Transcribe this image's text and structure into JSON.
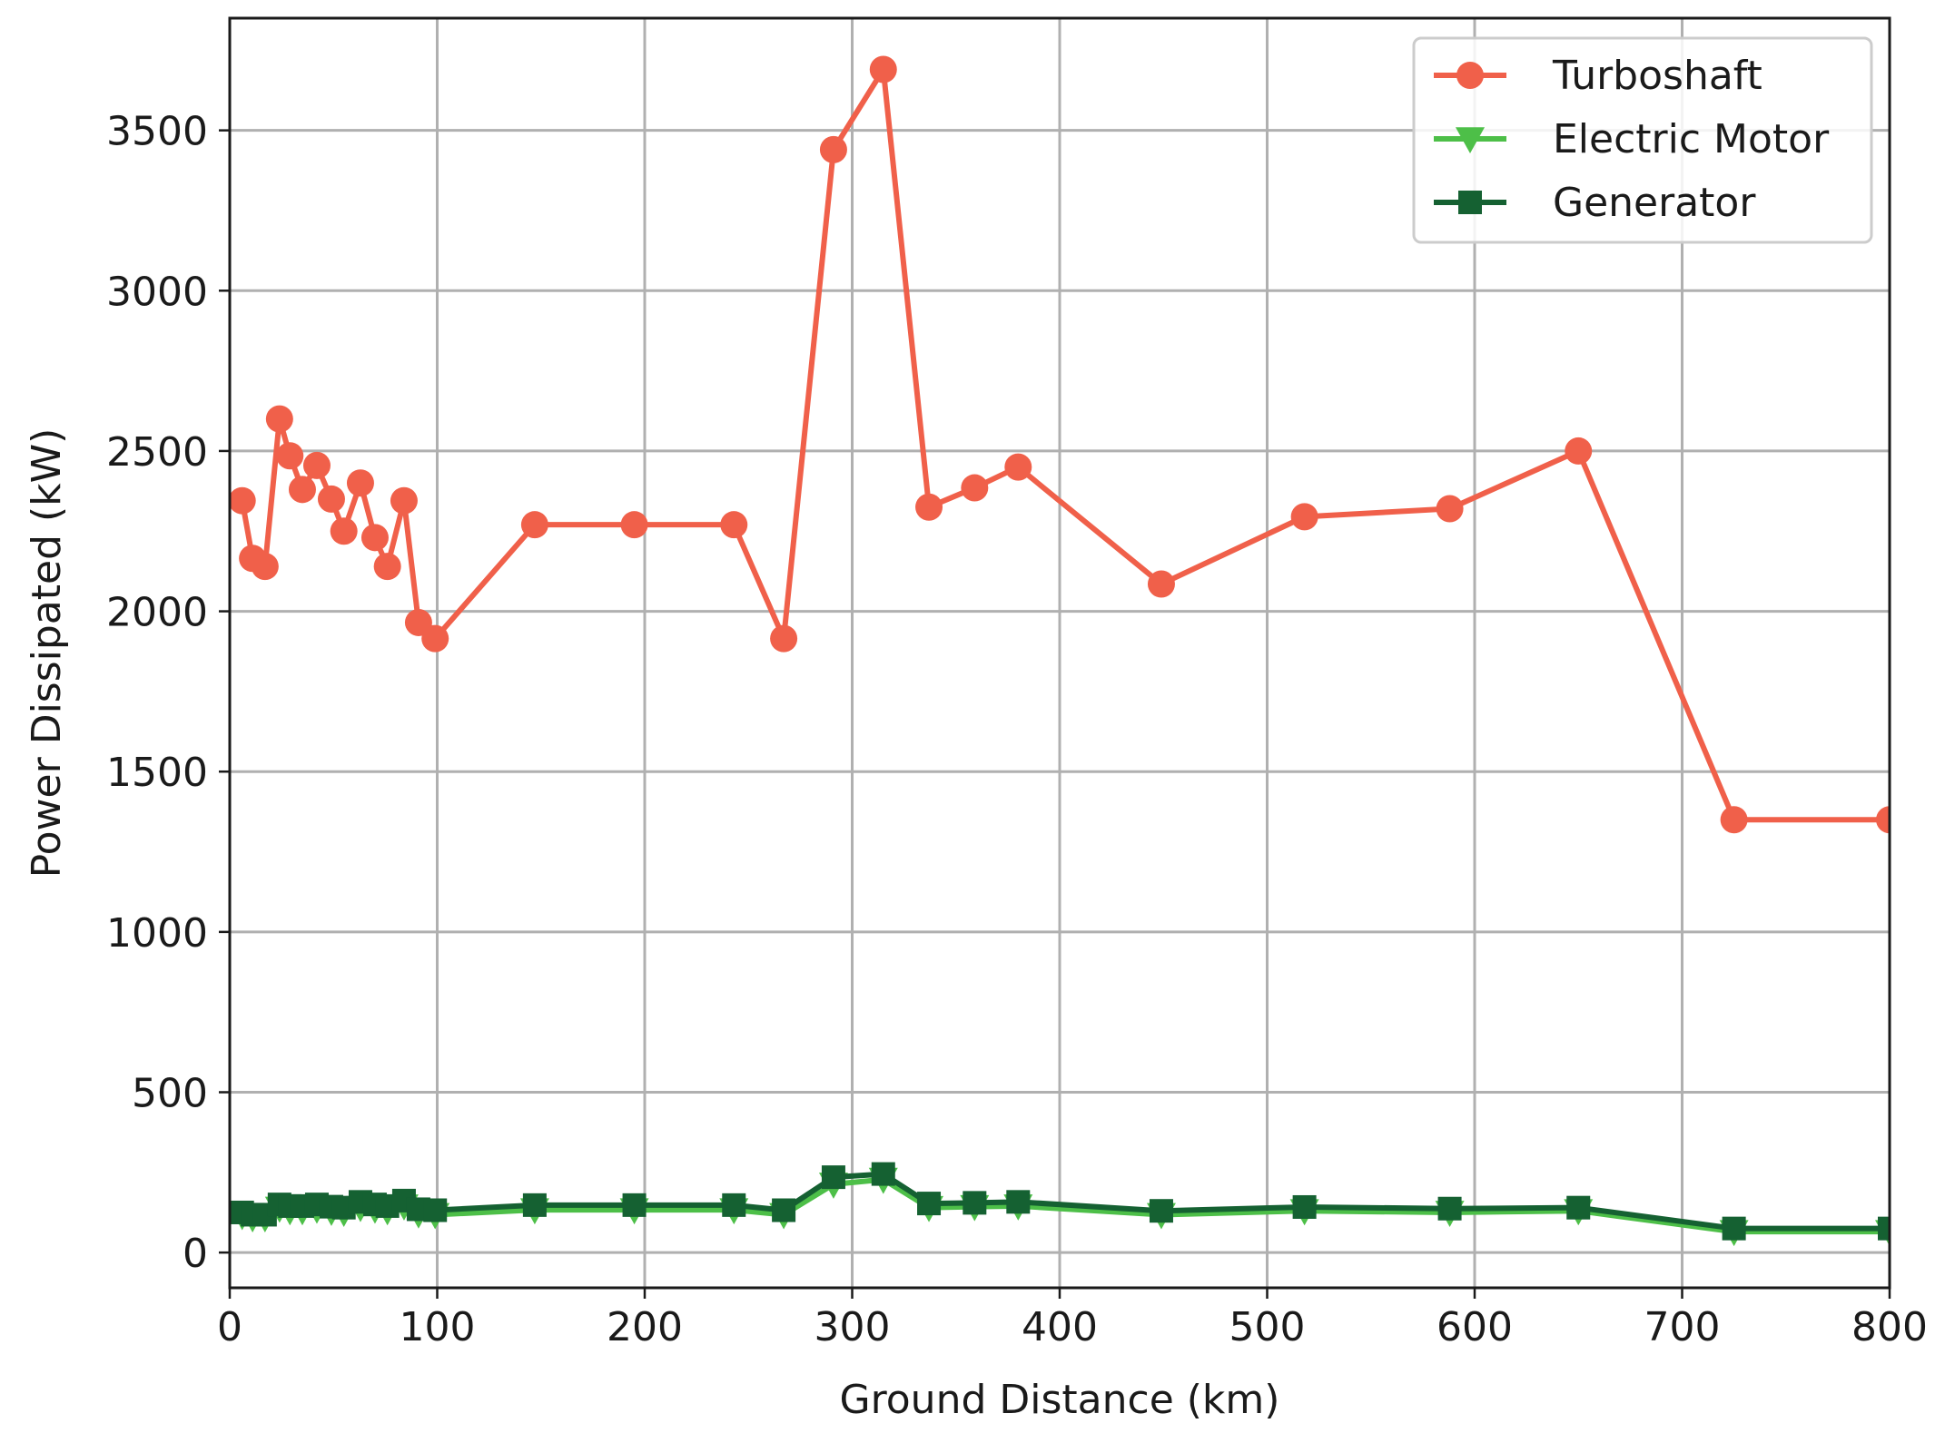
{
  "chart_data": {
    "type": "line",
    "title": "",
    "xlabel": "Ground Distance (km)",
    "ylabel": "Power Dissipated (kW)",
    "xlim": [
      0,
      800
    ],
    "ylim": [
      -110,
      3850
    ],
    "xticks": [
      0,
      100,
      200,
      300,
      400,
      500,
      600,
      700,
      800
    ],
    "yticks": [
      0,
      500,
      1000,
      1500,
      2000,
      2500,
      3000,
      3500
    ],
    "grid": true,
    "legend_position": "top-right",
    "series": [
      {
        "name": "Turboshaft",
        "color": "#f0604a",
        "marker": "circle",
        "x": [
          6,
          11,
          17,
          24,
          29,
          35,
          42,
          49,
          55,
          63,
          70,
          76,
          84,
          91,
          99,
          147,
          195,
          243,
          267,
          291,
          315,
          337,
          359,
          380,
          449,
          518,
          588,
          650,
          725,
          800
        ],
        "y": [
          2345,
          2165,
          2140,
          2600,
          2485,
          2380,
          2455,
          2350,
          2250,
          2400,
          2230,
          2140,
          2345,
          1965,
          1915,
          2270,
          2270,
          2270,
          1915,
          3440,
          3690,
          2325,
          2385,
          2450,
          2085,
          2295,
          2320,
          2500,
          1350,
          1350
        ]
      },
      {
        "name": "Electric Motor",
        "color": "#4dbf48",
        "marker": "triangle-down",
        "x": [
          6,
          11,
          17,
          24,
          29,
          35,
          42,
          49,
          55,
          63,
          70,
          76,
          84,
          91,
          99,
          147,
          195,
          243,
          267,
          291,
          315,
          337,
          359,
          380,
          449,
          518,
          588,
          650,
          725,
          800
        ],
        "y": [
          115,
          108,
          108,
          138,
          130,
          130,
          135,
          128,
          125,
          140,
          135,
          130,
          145,
          120,
          118,
          133,
          133,
          133,
          118,
          213,
          228,
          140,
          143,
          145,
          118,
          130,
          125,
          130,
          65,
          65
        ]
      },
      {
        "name": "Generator",
        "color": "#156132",
        "marker": "square",
        "x": [
          6,
          11,
          17,
          24,
          29,
          35,
          42,
          49,
          55,
          63,
          70,
          76,
          84,
          91,
          99,
          147,
          195,
          243,
          267,
          291,
          315,
          337,
          359,
          380,
          449,
          518,
          588,
          650,
          725,
          800
        ],
        "y": [
          125,
          118,
          118,
          150,
          145,
          145,
          150,
          143,
          140,
          158,
          150,
          145,
          162,
          135,
          132,
          148,
          148,
          148,
          132,
          235,
          245,
          153,
          155,
          158,
          130,
          142,
          137,
          140,
          75,
          75
        ]
      }
    ]
  }
}
